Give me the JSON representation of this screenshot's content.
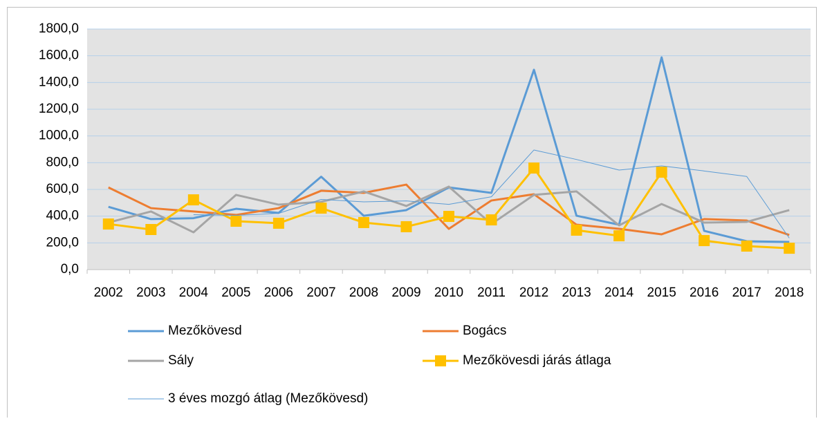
{
  "chart_data": {
    "type": "line",
    "categories": [
      "2002",
      "2003",
      "2004",
      "2005",
      "2006",
      "2007",
      "2008",
      "2009",
      "2010",
      "2011",
      "2012",
      "2013",
      "2014",
      "2015",
      "2016",
      "2017",
      "2018"
    ],
    "series": [
      {
        "name": "Mezőkövesd",
        "color": "#5b9bd5",
        "width": 3,
        "values": [
          470,
          378,
          385,
          455,
          424,
          695,
          403,
          445,
          615,
          574,
          1495,
          403,
          336,
          1588,
          290,
          212,
          207
        ]
      },
      {
        "name": "Bogács",
        "color": "#ed7d31",
        "width": 3,
        "values": [
          615,
          460,
          435,
          409,
          460,
          590,
          574,
          636,
          305,
          517,
          564,
          336,
          305,
          264,
          378,
          367,
          259
        ]
      },
      {
        "name": "Sály",
        "color": "#a5a5a5",
        "width": 3,
        "values": [
          352,
          435,
          279,
          559,
          486,
          507,
          585,
          476,
          621,
          341,
          559,
          585,
          331,
          491,
          352,
          357,
          445
        ]
      },
      {
        "name": "Mezőkövesdi járás átlaga",
        "color": "#ffc000",
        "width": 3,
        "marker": "square",
        "values": [
          341,
          300,
          522,
          362,
          347,
          460,
          352,
          321,
          398,
          372,
          760,
          295,
          253,
          729,
          217,
          176,
          160
        ]
      },
      {
        "name": "3 éves mozgó átlag (Mezőkövesd)",
        "color": "#5b9bd5",
        "width": 1,
        "values": [
          null,
          null,
          411,
          406,
          421,
          525,
          507,
          514,
          488,
          545,
          895,
          824,
          745,
          776,
          738,
          697,
          236
        ]
      }
    ],
    "ylim": [
      0,
      1800
    ],
    "yticks": [
      {
        "value": 0,
        "label": "0,0"
      },
      {
        "value": 200,
        "label": "200,0"
      },
      {
        "value": 400,
        "label": "400,0"
      },
      {
        "value": 600,
        "label": "600,0"
      },
      {
        "value": 800,
        "label": "800,0"
      },
      {
        "value": 1000,
        "label": "1000,0"
      },
      {
        "value": 1200,
        "label": "1200,0"
      },
      {
        "value": 1400,
        "label": "1400,0"
      },
      {
        "value": 1600,
        "label": "1600,0"
      },
      {
        "value": 1800,
        "label": "1800,0"
      }
    ],
    "grid": true,
    "legend": "bottom"
  }
}
